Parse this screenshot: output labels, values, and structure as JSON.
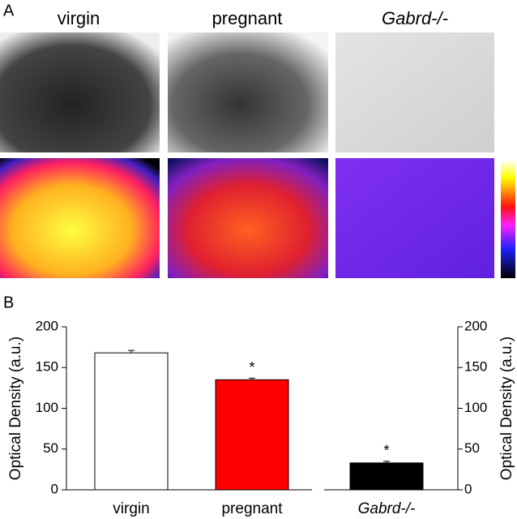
{
  "panel_a": {
    "label": "A",
    "columns": [
      "virgin",
      "pregnant",
      "Gabrd-/-"
    ]
  },
  "chart_data": {
    "type": "bar",
    "panel_label": "B",
    "categories": [
      "virgin",
      "pregnant",
      "Gabrd-/-"
    ],
    "colors": [
      "#ffffff",
      "#ff0000",
      "#000000"
    ],
    "series": [
      {
        "values": [
          168,
          135,
          null
        ],
        "errors": [
          3,
          2,
          null
        ],
        "axis": "y"
      },
      {
        "values": [
          null,
          null,
          33
        ],
        "errors": [
          null,
          null,
          2
        ],
        "axis": "y2"
      }
    ],
    "significance": [
      null,
      "*",
      "*"
    ],
    "ylabel": "Optical Density (a.u.)",
    "y2label": "Optical Density (a.u.)",
    "ylim": [
      0,
      200
    ],
    "yticks": [
      0,
      50,
      100,
      150,
      200
    ],
    "y2lim": [
      0,
      200
    ],
    "y2ticks": [
      0,
      50,
      100,
      150,
      200
    ]
  }
}
